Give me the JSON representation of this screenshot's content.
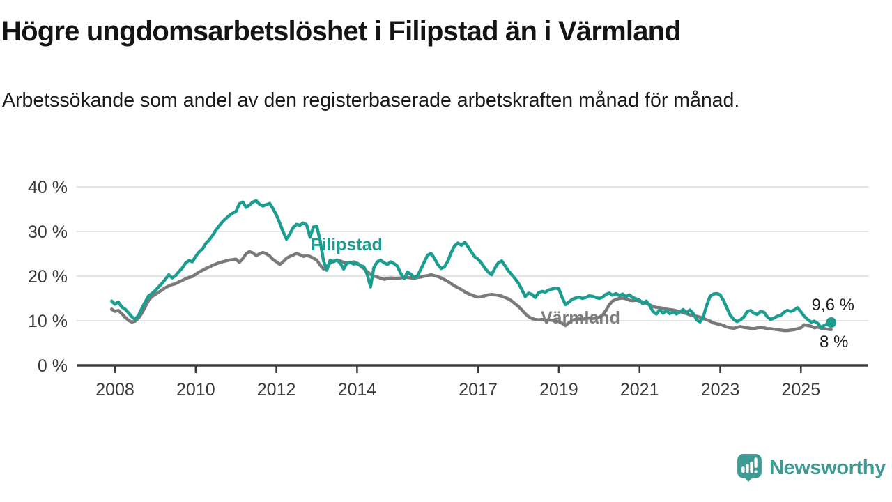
{
  "header": {
    "title": "Högre ungdomsarbetslöshet i Filipstad än i Värmland",
    "subtitle": "Arbetssökande som andel av den registerbaserade arbetskraften månad för månad."
  },
  "branding": {
    "logo_text": "Newsworthy",
    "logo_icon": "newsworthy-bubble-chart-icon",
    "logo_color": "#3e9a92"
  },
  "colors": {
    "background": "#ffffff",
    "grid": "#e4e4e4",
    "axis": "#3b3b3b",
    "tick_text": "#3a3a3a",
    "title_text": "#141414",
    "annotation_text": "#1e1e1e",
    "filipstad": "#1b9e90",
    "varmland": "#7a7a7a",
    "varmland_label": "#7e7e7e"
  },
  "chart_data": {
    "type": "line",
    "title": "Högre ungdomsarbetslöshet i Filipstad än i Värmland",
    "subtitle": "Arbetssökande som andel av den registerbaserade arbetskraften månad för månad.",
    "xlabel": "",
    "ylabel": "",
    "unit": "percent",
    "grid": "horizontal",
    "legend_position": "inline-labels",
    "ylim": [
      0,
      42
    ],
    "xlim": [
      2007.05,
      2026.65
    ],
    "y_ticks": [
      40,
      30,
      20,
      10,
      0
    ],
    "y_tick_suffix": " %",
    "x_ticks": [
      2008,
      2010,
      2012,
      2014,
      2017,
      2019,
      2021,
      2023,
      2025
    ],
    "x_start": 2007.9167,
    "x_step": 0.0833333,
    "series": [
      {
        "name": "Filipstad",
        "color": "#1b9e90",
        "end_label": "9,6 %",
        "end_value": 9.6,
        "end_dot": true,
        "values": [
          14.4,
          13.7,
          14.2,
          13.1,
          12.6,
          11.8,
          10.9,
          10.3,
          11.2,
          12.8,
          14.2,
          15.6,
          16.1,
          16.8,
          17.6,
          18.4,
          19.3,
          20.3,
          19.6,
          20.1,
          21.0,
          21.8,
          22.9,
          23.5,
          23.2,
          24.4,
          25.4,
          26.1,
          27.3,
          28.1,
          29.1,
          30.3,
          31.3,
          32.2,
          32.9,
          33.6,
          34.1,
          34.5,
          36.2,
          36.6,
          35.4,
          35.9,
          36.6,
          36.9,
          36.1,
          35.7,
          36.0,
          36.3,
          35.1,
          33.7,
          31.9,
          29.9,
          28.3,
          29.4,
          30.9,
          31.6,
          31.4,
          31.9,
          31.5,
          28.7,
          31.0,
          31.2,
          28.0,
          23.5,
          21.3,
          23.6,
          23.2,
          23.6,
          22.9,
          21.6,
          22.9,
          23.1,
          22.7,
          22.9,
          22.4,
          22.1,
          20.4,
          17.6,
          21.9,
          23.2,
          23.6,
          23.0,
          22.6,
          23.2,
          22.8,
          22.2,
          20.6,
          19.4,
          20.9,
          20.4,
          19.7,
          20.1,
          21.6,
          23.2,
          24.7,
          25.1,
          24.0,
          22.6,
          21.7,
          22.1,
          23.4,
          25.3,
          26.8,
          27.4,
          26.9,
          27.6,
          26.6,
          25.4,
          24.3,
          23.8,
          22.9,
          21.8,
          20.9,
          20.3,
          21.8,
          23.0,
          23.4,
          22.3,
          21.2,
          20.3,
          19.4,
          18.4,
          17.0,
          15.4,
          16.2,
          15.9,
          15.2,
          16.3,
          16.6,
          16.4,
          16.9,
          17.1,
          17.3,
          17.2,
          15.2,
          13.6,
          14.2,
          14.8,
          15.1,
          15.3,
          15.0,
          15.2,
          15.6,
          15.5,
          15.2,
          15.0,
          15.3,
          15.9,
          16.2,
          15.7,
          16.1,
          15.6,
          16.0,
          15.4,
          15.8,
          15.2,
          14.9,
          14.6,
          13.8,
          14.4,
          13.4,
          12.1,
          11.5,
          12.4,
          11.7,
          12.3,
          11.6,
          12.0,
          11.5,
          12.0,
          12.5,
          11.8,
          12.4,
          11.6,
          10.2,
          9.7,
          11.0,
          13.5,
          15.5,
          16.0,
          16.1,
          15.8,
          14.5,
          12.8,
          11.2,
          10.3,
          9.8,
          10.2,
          10.8,
          12.0,
          12.3,
          11.7,
          11.4,
          12.1,
          11.9,
          10.9,
          10.3,
          10.6,
          11.0,
          11.2,
          11.9,
          12.3,
          12.1,
          12.4,
          12.9,
          12.0,
          11.0,
          10.3,
          9.7,
          9.9,
          9.4,
          8.5,
          9.0,
          9.3,
          9.6
        ]
      },
      {
        "name": "Värmland",
        "color": "#7a7a7a",
        "end_label": "8 %",
        "end_value": 8,
        "end_dot": false,
        "values": [
          12.6,
          12.1,
          12.3,
          11.6,
          10.8,
          10.1,
          9.7,
          9.9,
          10.6,
          11.7,
          13.1,
          14.6,
          15.4,
          15.9,
          16.4,
          16.9,
          17.4,
          17.8,
          18.1,
          18.3,
          18.7,
          19.0,
          19.4,
          19.7,
          19.9,
          20.4,
          20.9,
          21.3,
          21.7,
          22.0,
          22.4,
          22.7,
          23.0,
          23.2,
          23.4,
          23.6,
          23.7,
          23.8,
          23.1,
          23.9,
          25.0,
          25.5,
          25.2,
          24.6,
          25.0,
          25.3,
          25.0,
          24.5,
          23.7,
          23.2,
          22.6,
          23.2,
          24.0,
          24.4,
          24.7,
          25.1,
          24.8,
          24.4,
          24.6,
          24.4,
          24.0,
          23.6,
          22.5,
          21.6,
          22.1,
          22.9,
          23.3,
          23.6,
          23.4,
          23.1,
          22.9,
          23.0,
          23.2,
          22.7,
          22.3,
          21.7,
          21.0,
          20.4,
          20.0,
          19.8,
          19.5,
          19.3,
          19.4,
          19.6,
          19.5,
          19.5,
          19.6,
          19.8,
          19.7,
          19.6,
          19.5,
          19.7,
          19.8,
          20.0,
          20.1,
          20.3,
          20.1,
          19.9,
          19.6,
          19.2,
          18.8,
          18.3,
          17.8,
          17.4,
          17.0,
          16.5,
          16.1,
          15.8,
          15.5,
          15.3,
          15.4,
          15.6,
          15.8,
          15.9,
          15.8,
          15.7,
          15.5,
          15.2,
          14.9,
          14.4,
          13.8,
          13.2,
          12.4,
          11.6,
          10.9,
          10.5,
          10.3,
          10.2,
          10.3,
          10.1,
          10.2,
          10.1,
          10.0,
          9.8,
          9.4,
          8.9,
          9.6,
          10.1,
          10.3,
          10.4,
          10.3,
          10.5,
          10.6,
          10.5,
          10.6,
          10.8,
          11.2,
          12.3,
          13.6,
          14.4,
          14.8,
          15.0,
          15.1,
          14.9,
          14.6,
          14.5,
          14.6,
          14.4,
          14.2,
          13.9,
          13.6,
          13.2,
          13.0,
          12.9,
          12.8,
          12.6,
          12.5,
          12.4,
          12.2,
          12.1,
          11.8,
          11.6,
          11.3,
          11.1,
          11.0,
          10.8,
          10.5,
          10.2,
          9.9,
          9.5,
          9.3,
          9.2,
          8.9,
          8.6,
          8.4,
          8.3,
          8.5,
          8.7,
          8.5,
          8.4,
          8.3,
          8.2,
          8.4,
          8.5,
          8.4,
          8.2,
          8.2,
          8.1,
          8.0,
          7.9,
          7.8,
          7.8,
          7.9,
          8.0,
          8.2,
          8.4,
          9.1,
          8.9,
          8.8,
          8.4,
          8.6,
          8.3,
          8.2,
          8.1,
          8.0
        ]
      }
    ]
  }
}
